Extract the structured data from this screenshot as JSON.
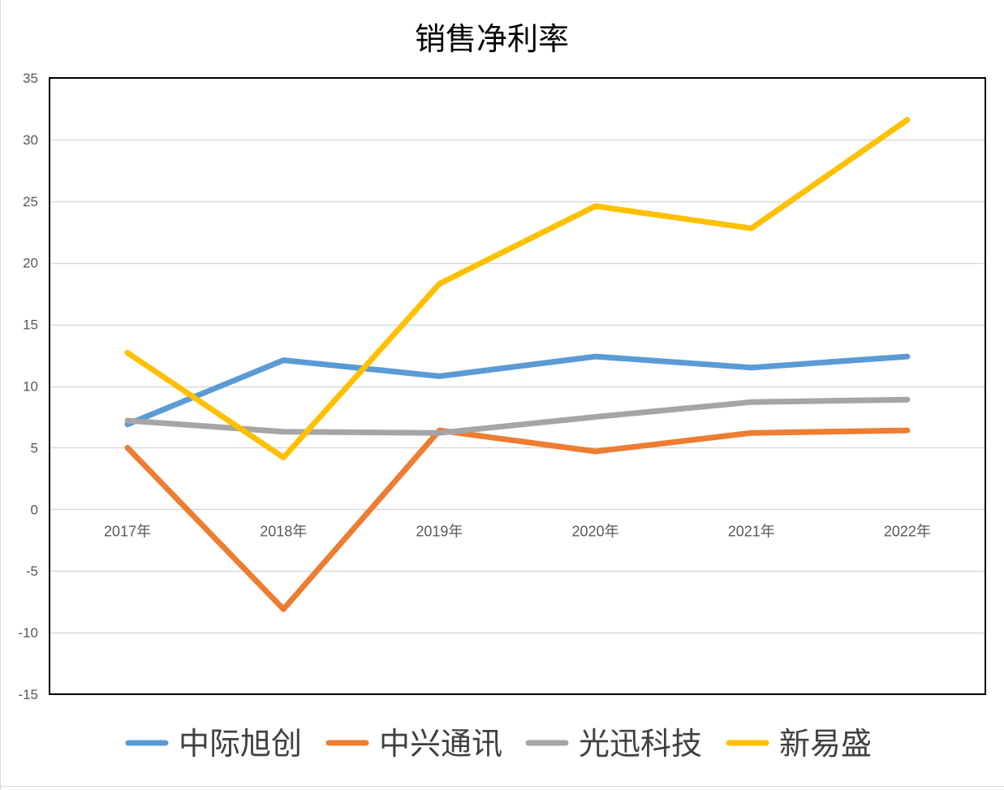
{
  "chart_data": {
    "type": "line",
    "title": "销售净利率",
    "xlabel": "",
    "ylabel": "",
    "categories": [
      "2017年",
      "2018年",
      "2019年",
      "2020年",
      "2021年",
      "2022年"
    ],
    "ylim": [
      -15,
      35
    ],
    "yticks": [
      "35",
      "30",
      "25",
      "20",
      "15",
      "10",
      "5",
      "0",
      "-5",
      "-10",
      "-15"
    ],
    "ytick_values": [
      35,
      30,
      25,
      20,
      15,
      10,
      5,
      0,
      -5,
      -10,
      -15
    ],
    "grid": true,
    "legend_position": "bottom",
    "series": [
      {
        "name": "中际旭创",
        "color": "#5B9BD5",
        "values": [
          6.9,
          12.1,
          10.8,
          12.4,
          11.5,
          12.4
        ]
      },
      {
        "name": "中兴通讯",
        "color": "#ED7D31",
        "values": [
          5.0,
          -8.1,
          6.4,
          4.7,
          6.2,
          6.4
        ]
      },
      {
        "name": "光迅科技",
        "color": "#A5A5A5",
        "values": [
          7.2,
          6.3,
          6.2,
          7.5,
          8.7,
          8.9
        ]
      },
      {
        "name": "新易盛",
        "color": "#FFC000",
        "values": [
          12.7,
          4.2,
          18.3,
          24.6,
          22.8,
          31.6
        ]
      }
    ]
  }
}
